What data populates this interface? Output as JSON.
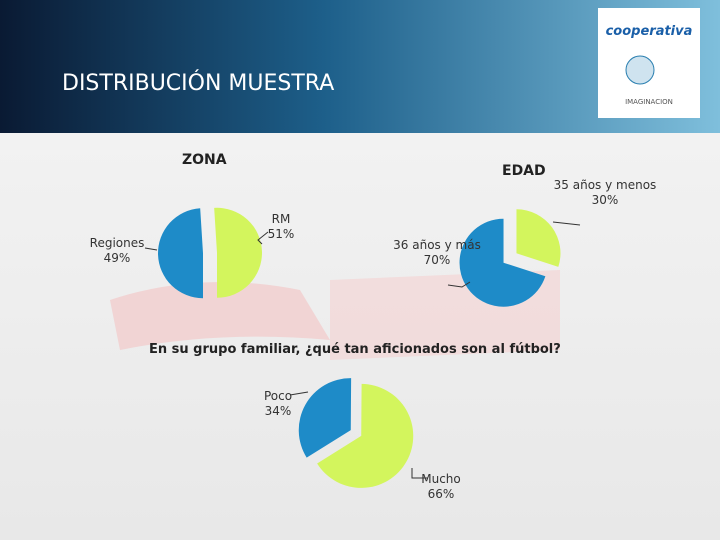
{
  "title": "DISTRIBUCIÓN MUESTRA",
  "logos": [
    "cooperativa",
    "IMAGINACION"
  ],
  "chart_data": [
    {
      "type": "pie",
      "title": "ZONA",
      "categories": [
        "Regiones",
        "RM"
      ],
      "values": [
        49,
        51
      ],
      "value_labels": [
        "49%",
        "51%"
      ],
      "colors": [
        "#1e8bc8",
        "#d3f55d"
      ],
      "exploded": true
    },
    {
      "type": "pie",
      "title": "EDAD",
      "categories": [
        "35 años y menos",
        "36 años y más"
      ],
      "values": [
        30,
        70
      ],
      "value_labels": [
        "30%",
        "70%"
      ],
      "colors": [
        "#d3f55d",
        "#1e8bc8"
      ],
      "exploded": true
    },
    {
      "type": "pie",
      "title": "En su grupo familiar, ¿qué tan aficionados son al fútbol?",
      "categories": [
        "Poco",
        "Mucho"
      ],
      "values": [
        34,
        66
      ],
      "value_labels": [
        "34%",
        "66%"
      ],
      "colors": [
        "#1e8bc8",
        "#d3f55d"
      ],
      "exploded": true
    }
  ]
}
